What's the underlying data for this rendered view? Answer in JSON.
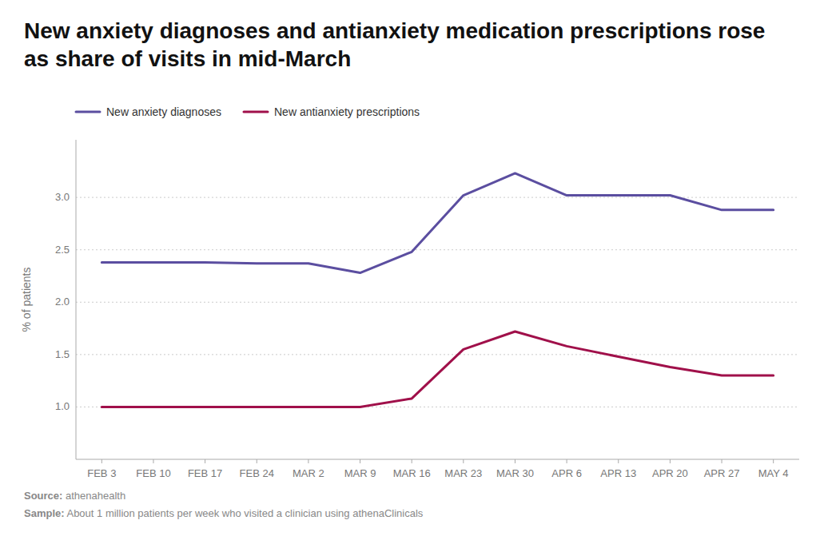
{
  "chart_data": {
    "type": "line",
    "title": "New anxiety diagnoses and antianxiety medication prescriptions rose as share of visits in mid-March",
    "y_label": "% of patients",
    "annotations": [
      "Source: athenahealth",
      "Sample: About 1 million patients per week who visited a clinician using athenaClinicals"
    ],
    "categories": [
      "FEB 3",
      "FEB 10",
      "FEB 17",
      "FEB 24",
      "MAR 2",
      "MAR 9",
      "MAR 16",
      "MAR 23",
      "MAR 30",
      "APR 6",
      "APR 13",
      "APR 20",
      "APR 27",
      "MAY 4"
    ],
    "series": [
      {
        "name": "New anxiety diagnoses",
        "color": "#5b4ea0",
        "values": [
          2.38,
          2.38,
          2.38,
          2.37,
          2.37,
          2.28,
          2.48,
          3.02,
          3.23,
          3.02,
          3.02,
          3.02,
          2.88,
          2.88
        ]
      },
      {
        "name": "New antianxiety prescriptions",
        "color": "#a0104a",
        "values": [
          1.0,
          1.0,
          1.0,
          1.0,
          1.0,
          1.0,
          1.08,
          1.55,
          1.72,
          1.58,
          1.48,
          1.38,
          1.3,
          1.3
        ]
      }
    ],
    "ylim": [
      0.5,
      3.55
    ],
    "yticks": [
      {
        "value": 1.0,
        "label": "1.0"
      },
      {
        "value": 1.5,
        "label": "1.5"
      },
      {
        "value": 2.0,
        "label": "2.0"
      },
      {
        "value": 2.5,
        "label": "2.5"
      },
      {
        "value": 3.0,
        "label": "3.0"
      }
    ],
    "grid": true,
    "legend": "top-left"
  }
}
